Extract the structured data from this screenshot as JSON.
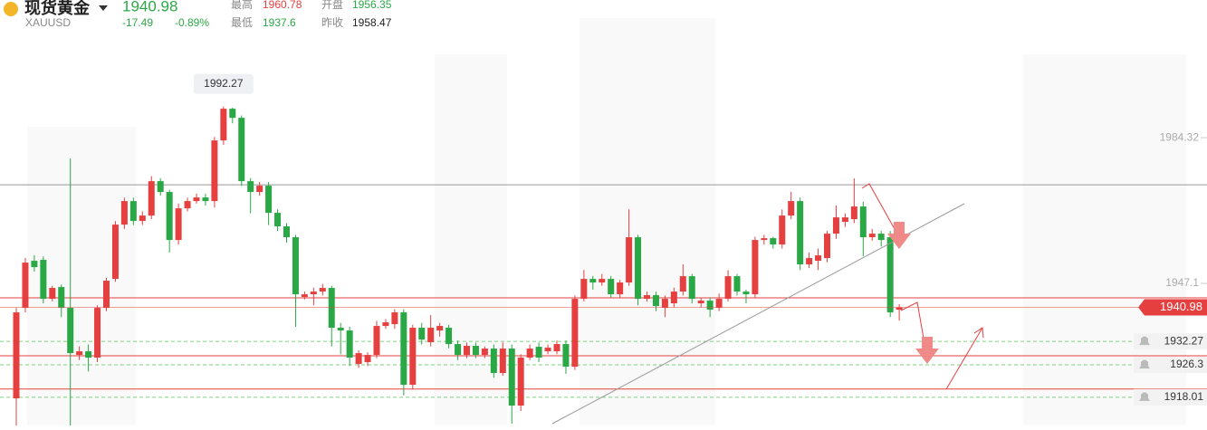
{
  "quote": {
    "name": "现货黄金",
    "symbol": "XAUUSD",
    "price": 1940.98,
    "change": -17.49,
    "change_pct": "-0.89%",
    "high_label": "最高",
    "high": 1960.78,
    "open_label": "开盘",
    "open": 1956.35,
    "low_label": "最低",
    "low": 1937.6,
    "prev_label": "昨收",
    "prev_close": 1958.47
  },
  "chart_data": {
    "type": "candlestick",
    "up_color": "#e5403f",
    "down_color": "#2aa845",
    "ylim": [
      1910.8,
      2019.5
    ],
    "yticks": [
      1947.1,
      1984.32
    ],
    "open": [
      1917.73,
      1940.85,
      1952.87,
      1953.11,
      1943.16,
      1946.17,
      1940.85,
      1928.83,
      1929.75,
      1928.14,
      1940.85,
      1948.25,
      1962.12,
      1968.13,
      1963.05,
      1964.43,
      1973.22,
      1970.45,
      1958.19,
      1966.28,
      1968.13,
      1969.06,
      1968.13,
      1983.62,
      1991.72,
      1989.4,
      1973.22,
      1970.45,
      1972.06,
      1965.13,
      1961.66,
      1958.89,
      1943.63,
      1944.32,
      1945.01,
      1945.94,
      1935.77,
      1935.07,
      1926.52,
      1926.98,
      1928.83,
      1936.23,
      1936.69,
      1939.7,
      1921.2,
      1935.77,
      1932.07,
      1935.07,
      1935.77,
      1931.6,
      1928.83,
      1931.14,
      1928.83,
      1930.45,
      1924.21,
      1930.45,
      1915.88,
      1928.14,
      1930.91,
      1929.75,
      1929.75,
      1931.6,
      1925.82,
      1943.16,
      1948.25,
      1947.33,
      1948.25,
      1944.32,
      1947.33,
      1958.89,
      1943.16,
      1944.09,
      1940.85,
      1942.01,
      1945.01,
      1948.94,
      1942.01,
      1942.7,
      1940.85,
      1943.16,
      1948.94,
      1945.01,
      1944.32,
      1958.19,
      1958.65,
      1957.04,
      1964.43,
      1968.13,
      1951.95,
      1952.87,
      1953.57,
      1959.81,
      1962.82,
      1963.51,
      1966.75,
      1958.89,
      1959.81,
      1958.89,
      1940.39
    ],
    "high": [
      1940.85,
      1953.6,
      1954.3,
      1954.0,
      1946.5,
      1946.8,
      1979.0,
      1931.0,
      1931.5,
      1941.5,
      1948.5,
      1963.0,
      1969.0,
      1969.0,
      1965.5,
      1974.5,
      1974.0,
      1971.0,
      1967.5,
      1969.0,
      1970.0,
      1970.0,
      1984.5,
      1992.27,
      1992.0,
      1990.0,
      1974.0,
      1973.0,
      1973.0,
      1966.0,
      1962.5,
      1959.5,
      1945.0,
      1946.0,
      1947.0,
      1946.5,
      1937.0,
      1936.0,
      1930.0,
      1929.5,
      1937.5,
      1938.0,
      1940.5,
      1940.5,
      1936.5,
      1937.0,
      1939.0,
      1937.0,
      1936.5,
      1932.5,
      1932.0,
      1932.0,
      1931.0,
      1931.5,
      1932.0,
      1931.5,
      1929.0,
      1931.5,
      1932.0,
      1931.5,
      1932.5,
      1932.5,
      1944.0,
      1950.5,
      1949.0,
      1949.5,
      1949.0,
      1948.0,
      1966.0,
      1959.5,
      1945.0,
      1945.0,
      1944.0,
      1946.0,
      1952.0,
      1949.5,
      1943.5,
      1943.5,
      1944.5,
      1950.5,
      1949.5,
      1945.5,
      1959.0,
      1959.5,
      1959.0,
      1966.0,
      1970.5,
      1969.0,
      1955.0,
      1956.0,
      1960.5,
      1967.0,
      1965.0,
      1973.91,
      1968.0,
      1961.0,
      1960.5,
      1960.5,
      1941.8
    ],
    "low": [
      1910.8,
      1939.7,
      1950.1,
      1942.0,
      1942.5,
      1938.5,
      1910.8,
      1927.5,
      1924.6,
      1927.0,
      1940.0,
      1947.5,
      1961.0,
      1962.0,
      1962.0,
      1963.5,
      1969.5,
      1955.0,
      1957.0,
      1965.5,
      1967.5,
      1967.0,
      1966.5,
      1982.5,
      1988.0,
      1972.0,
      1965.0,
      1969.5,
      1962.0,
      1960.5,
      1957.5,
      1936.0,
      1943.0,
      1941.5,
      1944.0,
      1931.0,
      1929.0,
      1926.0,
      1925.5,
      1926.0,
      1928.0,
      1935.5,
      1935.5,
      1918.5,
      1920.0,
      1931.5,
      1931.0,
      1933.5,
      1930.5,
      1927.5,
      1928.0,
      1928.0,
      1928.0,
      1923.0,
      1923.5,
      1911.26,
      1914.5,
      1927.5,
      1927.0,
      1929.0,
      1929.0,
      1924.0,
      1925.0,
      1942.5,
      1945.5,
      1946.5,
      1943.5,
      1943.5,
      1946.5,
      1941.5,
      1942.5,
      1940.0,
      1938.5,
      1941.0,
      1944.0,
      1942.0,
      1941.0,
      1938.5,
      1940.0,
      1942.5,
      1944.0,
      1942.0,
      1943.5,
      1957.0,
      1956.0,
      1956.0,
      1963.5,
      1950.5,
      1951.0,
      1950.5,
      1952.5,
      1958.5,
      1961.5,
      1962.5,
      1954.0,
      1958.0,
      1956.5,
      1938.5,
      1937.6
    ],
    "close": [
      1939.7,
      1952.41,
      1951.26,
      1943.16,
      1945.94,
      1940.85,
      1929.29,
      1929.75,
      1928.14,
      1940.85,
      1947.79,
      1962.12,
      1968.13,
      1963.05,
      1964.43,
      1973.22,
      1970.45,
      1958.19,
      1966.28,
      1968.13,
      1969.06,
      1968.13,
      1983.62,
      1991.72,
      1989.4,
      1973.22,
      1970.45,
      1972.06,
      1965.13,
      1961.66,
      1958.89,
      1944.32,
      1944.32,
      1945.01,
      1945.94,
      1935.77,
      1935.07,
      1928.14,
      1929.29,
      1928.83,
      1936.23,
      1937.15,
      1939.7,
      1921.2,
      1935.77,
      1932.76,
      1935.77,
      1936.23,
      1931.6,
      1928.83,
      1931.14,
      1928.83,
      1930.45,
      1924.21,
      1930.45,
      1915.88,
      1928.14,
      1930.45,
      1928.14,
      1930.68,
      1931.6,
      1925.82,
      1943.16,
      1948.25,
      1947.33,
      1948.25,
      1944.32,
      1947.33,
      1958.89,
      1943.16,
      1944.09,
      1941.31,
      1943.16,
      1945.01,
      1948.94,
      1943.16,
      1942.7,
      1940.39,
      1943.16,
      1948.94,
      1945.01,
      1944.32,
      1958.19,
      1958.65,
      1957.04,
      1964.43,
      1968.13,
      1951.95,
      1953.57,
      1954.26,
      1959.81,
      1963.97,
      1963.97,
      1966.75,
      1958.89,
      1959.81,
      1958.19,
      1939.7,
      1940.98
    ],
    "hlines": [
      {
        "value": 1972.3,
        "color": "#999999"
      },
      {
        "value": 1943.4,
        "color": "#e5403f"
      },
      {
        "value": 1928.6,
        "color": "#e5403f"
      },
      {
        "value": 1920.1,
        "color": "#e5403f"
      }
    ],
    "alerts": [
      1932.27,
      1926.3,
      1918.01
    ],
    "alert_color": "#7bd67b"
  }
}
